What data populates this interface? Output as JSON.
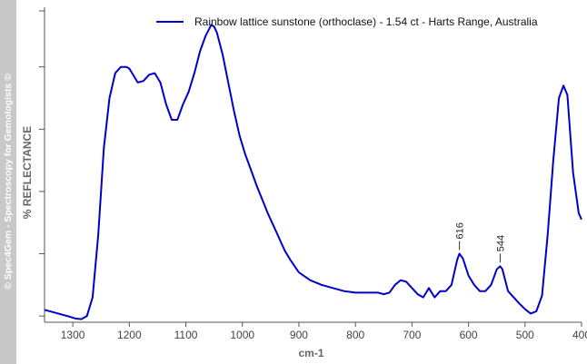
{
  "watermark": "© Spec4Gem - Spectroscopy for Gemologists ©",
  "chart_data": {
    "type": "line",
    "xlabel": "cm-1",
    "ylabel": "% REFLECTANCE",
    "xlim": [
      1350,
      400
    ],
    "ylim": [
      0,
      100
    ],
    "x_reversed": true,
    "xticks": [
      1300,
      1200,
      1100,
      1000,
      900,
      800,
      700,
      600,
      500,
      400
    ],
    "xtick_labels": [
      "1300",
      "1200",
      "1100",
      "1000",
      "900",
      "800",
      "700",
      "600",
      "500",
      "400"
    ],
    "yticks": [
      2,
      22,
      42,
      62,
      82,
      100
    ],
    "grid": false,
    "legend_position": "top-right",
    "colors": {
      "series": "#0000cc",
      "axis": "#555555"
    },
    "series": [
      {
        "name": "Rainbow lattice sunstone (orthoclase) - 1.54 ct - Harts Range, Australia",
        "x": [
          1350,
          1330,
          1310,
          1295,
          1285,
          1275,
          1265,
          1255,
          1245,
          1235,
          1225,
          1215,
          1205,
          1200,
          1195,
          1185,
          1175,
          1165,
          1155,
          1145,
          1135,
          1125,
          1115,
          1105,
          1095,
          1085,
          1075,
          1065,
          1055,
          1050,
          1045,
          1035,
          1025,
          1015,
          1005,
          995,
          985,
          975,
          965,
          955,
          945,
          935,
          925,
          915,
          900,
          880,
          860,
          840,
          820,
          800,
          780,
          760,
          750,
          740,
          730,
          720,
          710,
          700,
          690,
          680,
          670,
          660,
          650,
          640,
          630,
          620,
          616,
          610,
          600,
          590,
          580,
          570,
          560,
          550,
          544,
          540,
          530,
          520,
          510,
          500,
          490,
          480,
          470,
          460,
          450,
          440,
          432,
          425,
          415,
          405,
          400
        ],
        "y": [
          4,
          3,
          2,
          1.2,
          1,
          2,
          8,
          28,
          56,
          72,
          80,
          82,
          82,
          81.5,
          80,
          77,
          77.5,
          79.5,
          80,
          77,
          70,
          65,
          65,
          70,
          74,
          80,
          87,
          92,
          95.5,
          95,
          93,
          86,
          77,
          68,
          60,
          54,
          49,
          44,
          39.5,
          35,
          31,
          27,
          23,
          20,
          16,
          13.5,
          12,
          11,
          10,
          9.5,
          9.5,
          9.5,
          9,
          9.5,
          12,
          13.5,
          13,
          11,
          9,
          8,
          11,
          8,
          10,
          10,
          12,
          20,
          22,
          20.5,
          15,
          12,
          10,
          10,
          12,
          17,
          18,
          17,
          10,
          8,
          6,
          4.2,
          2.8,
          3.5,
          8.5,
          28,
          52,
          72,
          76,
          73,
          48,
          35,
          33
        ]
      }
    ],
    "annotations": [
      {
        "text": "616",
        "x": 616,
        "y": 22
      },
      {
        "text": "544",
        "x": 544,
        "y": 18
      }
    ]
  }
}
